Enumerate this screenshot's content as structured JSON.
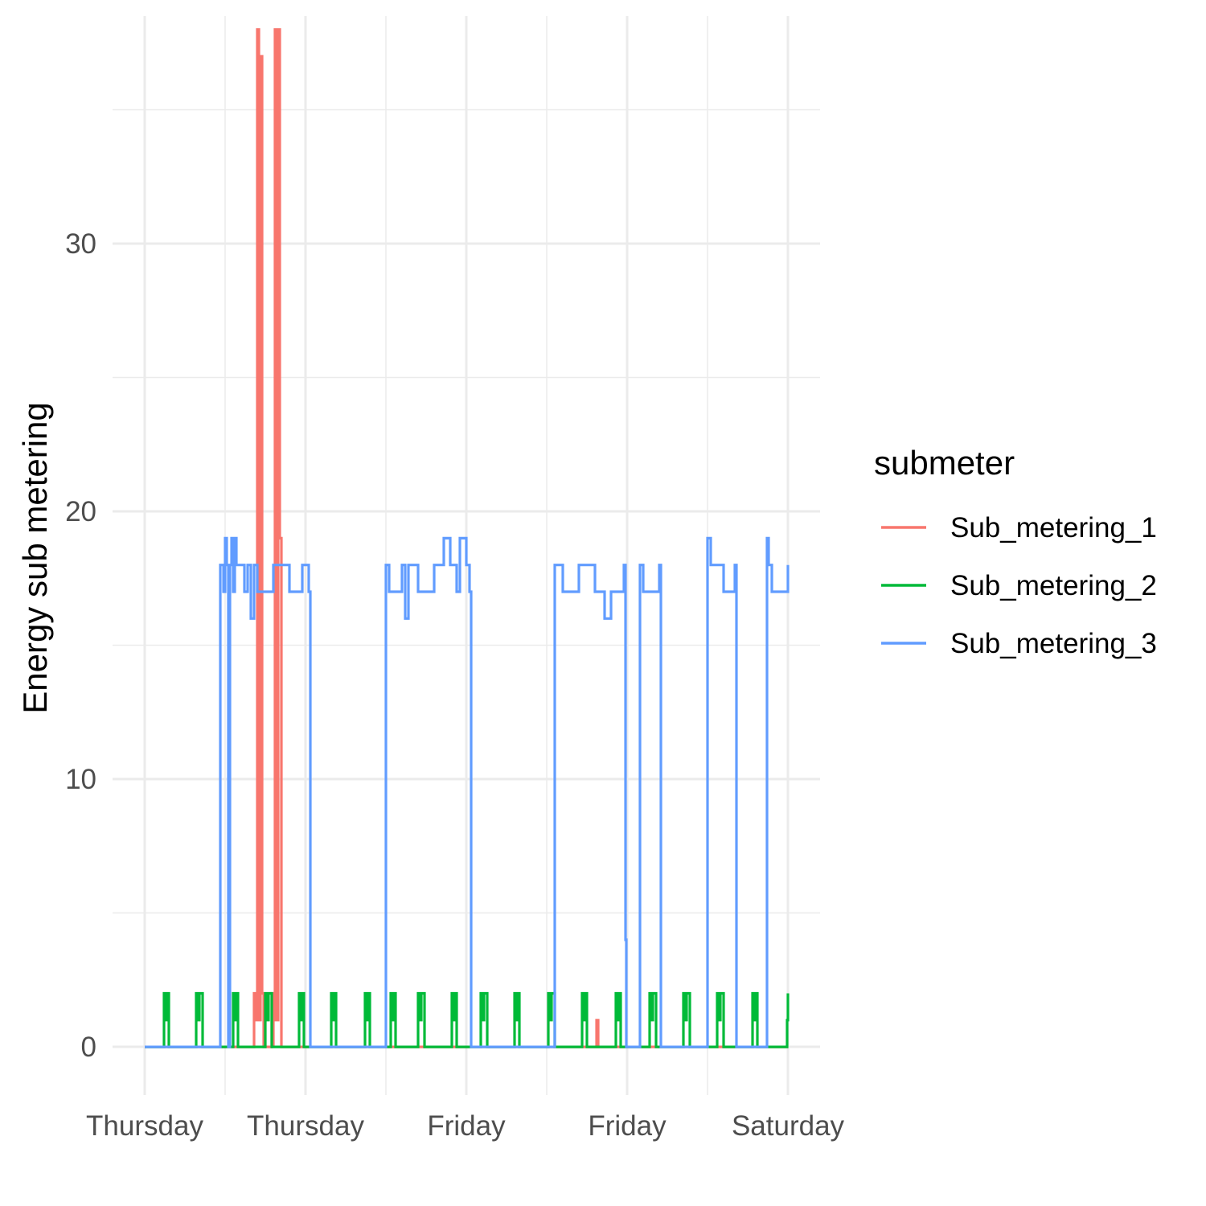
{
  "chart_data": {
    "type": "line",
    "title": "",
    "xlabel": "",
    "ylabel": "Energy sub metering",
    "ylim": [
      -1.8,
      38.5
    ],
    "xlim": [
      -0.2,
      4.2
    ],
    "y_ticks": [
      0,
      10,
      20,
      30
    ],
    "y_minor_ticks": [
      5,
      15,
      25,
      35
    ],
    "x_tick_positions": [
      0,
      1,
      2,
      3,
      4
    ],
    "x_tick_labels": [
      "Thursday",
      "Thursday",
      "Friday",
      "Friday",
      "Saturday"
    ],
    "x_minor_tick_positions": [
      0.5,
      1.5,
      2.5,
      3.5
    ],
    "grid": true,
    "legend": {
      "title": "submeter",
      "placement": "right"
    },
    "series": [
      {
        "name": "Sub_metering_1",
        "color": "#F8766D",
        "points": [
          [
            0,
            0
          ],
          [
            0.67,
            0
          ],
          [
            0.68,
            2
          ],
          [
            0.69,
            1
          ],
          [
            0.7,
            38
          ],
          [
            0.71,
            1
          ],
          [
            0.72,
            37
          ],
          [
            0.73,
            2
          ],
          [
            0.74,
            0
          ],
          [
            0.78,
            0
          ],
          [
            0.79,
            2
          ],
          [
            0.8,
            0
          ],
          [
            0.8,
            1
          ],
          [
            0.81,
            38
          ],
          [
            0.82,
            1
          ],
          [
            0.83,
            38
          ],
          [
            0.84,
            19
          ],
          [
            0.85,
            0
          ],
          [
            1.0,
            0
          ],
          [
            2.8,
            0
          ],
          [
            2.81,
            1
          ],
          [
            2.82,
            0
          ],
          [
            4.0,
            0
          ]
        ]
      },
      {
        "name": "Sub_metering_2",
        "color": "#00BA38",
        "points": [
          [
            0,
            0
          ],
          [
            0.11,
            0
          ],
          [
            0.12,
            2
          ],
          [
            0.13,
            1
          ],
          [
            0.14,
            2
          ],
          [
            0.15,
            0
          ],
          [
            0.31,
            0
          ],
          [
            0.32,
            2
          ],
          [
            0.33,
            1
          ],
          [
            0.34,
            2
          ],
          [
            0.36,
            0
          ],
          [
            0.54,
            0
          ],
          [
            0.55,
            2
          ],
          [
            0.56,
            1
          ],
          [
            0.57,
            2
          ],
          [
            0.58,
            0
          ],
          [
            0.74,
            0
          ],
          [
            0.75,
            2
          ],
          [
            0.76,
            1
          ],
          [
            0.77,
            2
          ],
          [
            0.79,
            0
          ],
          [
            0.95,
            0
          ],
          [
            0.96,
            2
          ],
          [
            0.97,
            1
          ],
          [
            0.98,
            2
          ],
          [
            0.99,
            0
          ],
          [
            1.15,
            0
          ],
          [
            1.16,
            2
          ],
          [
            1.17,
            1
          ],
          [
            1.18,
            2
          ],
          [
            1.19,
            0
          ],
          [
            1.36,
            0
          ],
          [
            1.37,
            2
          ],
          [
            1.38,
            1
          ],
          [
            1.39,
            2
          ],
          [
            1.4,
            0
          ],
          [
            1.52,
            0
          ],
          [
            1.53,
            2
          ],
          [
            1.54,
            1
          ],
          [
            1.55,
            2
          ],
          [
            1.56,
            0
          ],
          [
            1.69,
            0
          ],
          [
            1.7,
            2
          ],
          [
            1.71,
            1
          ],
          [
            1.72,
            2
          ],
          [
            1.74,
            0
          ],
          [
            1.9,
            0
          ],
          [
            1.91,
            2
          ],
          [
            1.92,
            1
          ],
          [
            1.93,
            2
          ],
          [
            1.94,
            0
          ],
          [
            2.08,
            0
          ],
          [
            2.09,
            2
          ],
          [
            2.1,
            1
          ],
          [
            2.11,
            2
          ],
          [
            2.13,
            0
          ],
          [
            2.29,
            0
          ],
          [
            2.3,
            2
          ],
          [
            2.31,
            1
          ],
          [
            2.32,
            2
          ],
          [
            2.33,
            0
          ],
          [
            2.5,
            0
          ],
          [
            2.51,
            2
          ],
          [
            2.52,
            1
          ],
          [
            2.53,
            2
          ],
          [
            2.55,
            0
          ],
          [
            2.71,
            0
          ],
          [
            2.72,
            2
          ],
          [
            2.73,
            1
          ],
          [
            2.74,
            2
          ],
          [
            2.75,
            0
          ],
          [
            2.92,
            0
          ],
          [
            2.93,
            2
          ],
          [
            2.94,
            1
          ],
          [
            2.95,
            2
          ],
          [
            2.96,
            0
          ],
          [
            3.13,
            0
          ],
          [
            3.14,
            2
          ],
          [
            3.15,
            1
          ],
          [
            3.16,
            2
          ],
          [
            3.18,
            0
          ],
          [
            3.34,
            0
          ],
          [
            3.35,
            2
          ],
          [
            3.36,
            1
          ],
          [
            3.37,
            2
          ],
          [
            3.39,
            0
          ],
          [
            3.55,
            0
          ],
          [
            3.56,
            2
          ],
          [
            3.57,
            1
          ],
          [
            3.58,
            2
          ],
          [
            3.6,
            0
          ],
          [
            3.77,
            0
          ],
          [
            3.78,
            2
          ],
          [
            3.79,
            1
          ],
          [
            3.8,
            2
          ],
          [
            3.81,
            0
          ],
          [
            3.99,
            0
          ],
          [
            3.995,
            1
          ],
          [
            4.0,
            2
          ]
        ]
      },
      {
        "name": "Sub_metering_3",
        "color": "#619CFF",
        "points": [
          [
            0,
            0
          ],
          [
            0.47,
            0
          ],
          [
            0.47,
            18
          ],
          [
            0.49,
            17
          ],
          [
            0.5,
            19
          ],
          [
            0.51,
            18
          ],
          [
            0.52,
            0
          ],
          [
            0.53,
            18
          ],
          [
            0.54,
            19
          ],
          [
            0.55,
            17
          ],
          [
            0.56,
            19
          ],
          [
            0.57,
            18
          ],
          [
            0.62,
            17
          ],
          [
            0.64,
            18
          ],
          [
            0.66,
            16
          ],
          [
            0.68,
            18
          ],
          [
            0.7,
            17
          ],
          [
            0.8,
            18
          ],
          [
            0.9,
            17
          ],
          [
            0.98,
            18
          ],
          [
            1.02,
            17
          ],
          [
            1.03,
            0
          ],
          [
            1.5,
            0
          ],
          [
            1.5,
            18
          ],
          [
            1.52,
            17
          ],
          [
            1.6,
            18
          ],
          [
            1.62,
            16
          ],
          [
            1.64,
            18
          ],
          [
            1.7,
            17
          ],
          [
            1.8,
            18
          ],
          [
            1.86,
            19
          ],
          [
            1.9,
            18
          ],
          [
            1.94,
            17
          ],
          [
            1.96,
            19
          ],
          [
            1.98,
            19
          ],
          [
            2.0,
            18
          ],
          [
            2.02,
            17
          ],
          [
            2.03,
            0
          ],
          [
            2.55,
            0
          ],
          [
            2.55,
            18
          ],
          [
            2.6,
            17
          ],
          [
            2.7,
            18
          ],
          [
            2.8,
            17
          ],
          [
            2.86,
            16
          ],
          [
            2.9,
            17
          ],
          [
            2.98,
            18
          ],
          [
            2.99,
            4
          ],
          [
            2.995,
            0
          ],
          [
            3.08,
            0
          ],
          [
            3.08,
            18
          ],
          [
            3.1,
            17
          ],
          [
            3.2,
            18
          ],
          [
            3.21,
            0
          ],
          [
            3.5,
            0
          ],
          [
            3.5,
            19
          ],
          [
            3.52,
            18
          ],
          [
            3.6,
            17
          ],
          [
            3.67,
            18
          ],
          [
            3.68,
            0
          ],
          [
            3.86,
            0
          ],
          [
            3.87,
            19
          ],
          [
            3.88,
            18
          ],
          [
            3.9,
            17
          ],
          [
            4.0,
            18
          ]
        ]
      }
    ]
  }
}
